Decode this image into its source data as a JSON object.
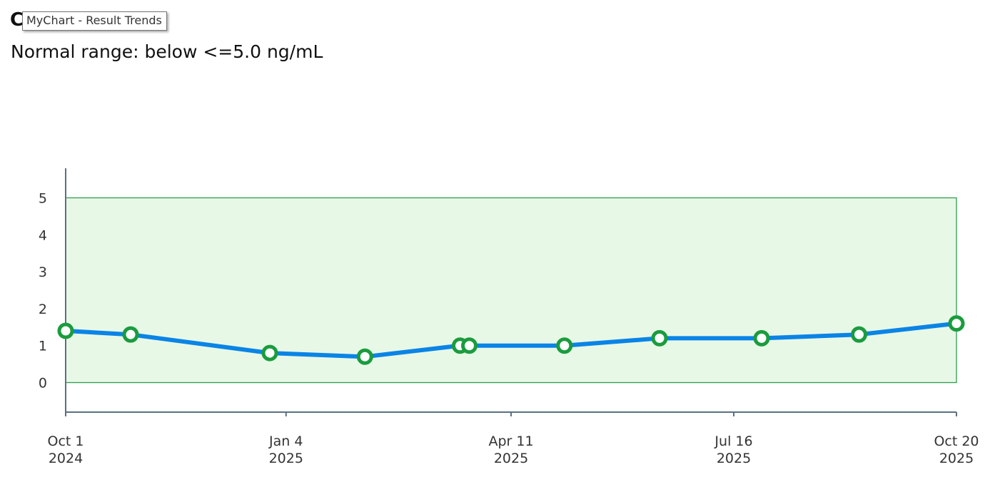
{
  "header": {
    "title_partial": "C",
    "tooltip": "MyChart - Result Trends",
    "subtitle": "Normal range: below <=5.0 ng/mL"
  },
  "colors": {
    "line": "#0a84e6",
    "marker": "#1a9c3e",
    "normal_band_fill": "#e8f8e6",
    "normal_band_stroke": "#2e9e4e",
    "axis": "#5b7080"
  },
  "chart_data": {
    "type": "line",
    "title": "",
    "xlabel": "",
    "ylabel": "",
    "x_ticks": [
      {
        "date": "2024-10-01",
        "month": "Oct 1",
        "year": "2024"
      },
      {
        "date": "2025-01-04",
        "month": "Jan 4",
        "year": "2025"
      },
      {
        "date": "2025-04-11",
        "month": "Apr 11",
        "year": "2025"
      },
      {
        "date": "2025-07-16",
        "month": "Jul 16",
        "year": "2025"
      },
      {
        "date": "2025-10-20",
        "month": "Oct 20",
        "year": "2025"
      }
    ],
    "y_ticks": [
      0,
      1,
      2,
      3,
      4,
      5
    ],
    "xlim": [
      "2024-10-01",
      "2025-10-20"
    ],
    "ylim": [
      -0.8,
      5.8
    ],
    "normal_range": {
      "min": 0,
      "max": 5.0,
      "unit": "ng/mL"
    },
    "series": [
      {
        "points": [
          {
            "x": "2024-10-01",
            "y": 1.4
          },
          {
            "x": "2024-10-29",
            "y": 1.3
          },
          {
            "x": "2024-12-28",
            "y": 0.8
          },
          {
            "x": "2025-02-07",
            "y": 0.7
          },
          {
            "x": "2025-03-20",
            "y": 1.0
          },
          {
            "x": "2025-03-24",
            "y": 1.0
          },
          {
            "x": "2025-05-04",
            "y": 1.0
          },
          {
            "x": "2025-06-14",
            "y": 1.2
          },
          {
            "x": "2025-07-28",
            "y": 1.2
          },
          {
            "x": "2025-09-08",
            "y": 1.3
          },
          {
            "x": "2025-10-20",
            "y": 1.6
          }
        ]
      }
    ]
  }
}
